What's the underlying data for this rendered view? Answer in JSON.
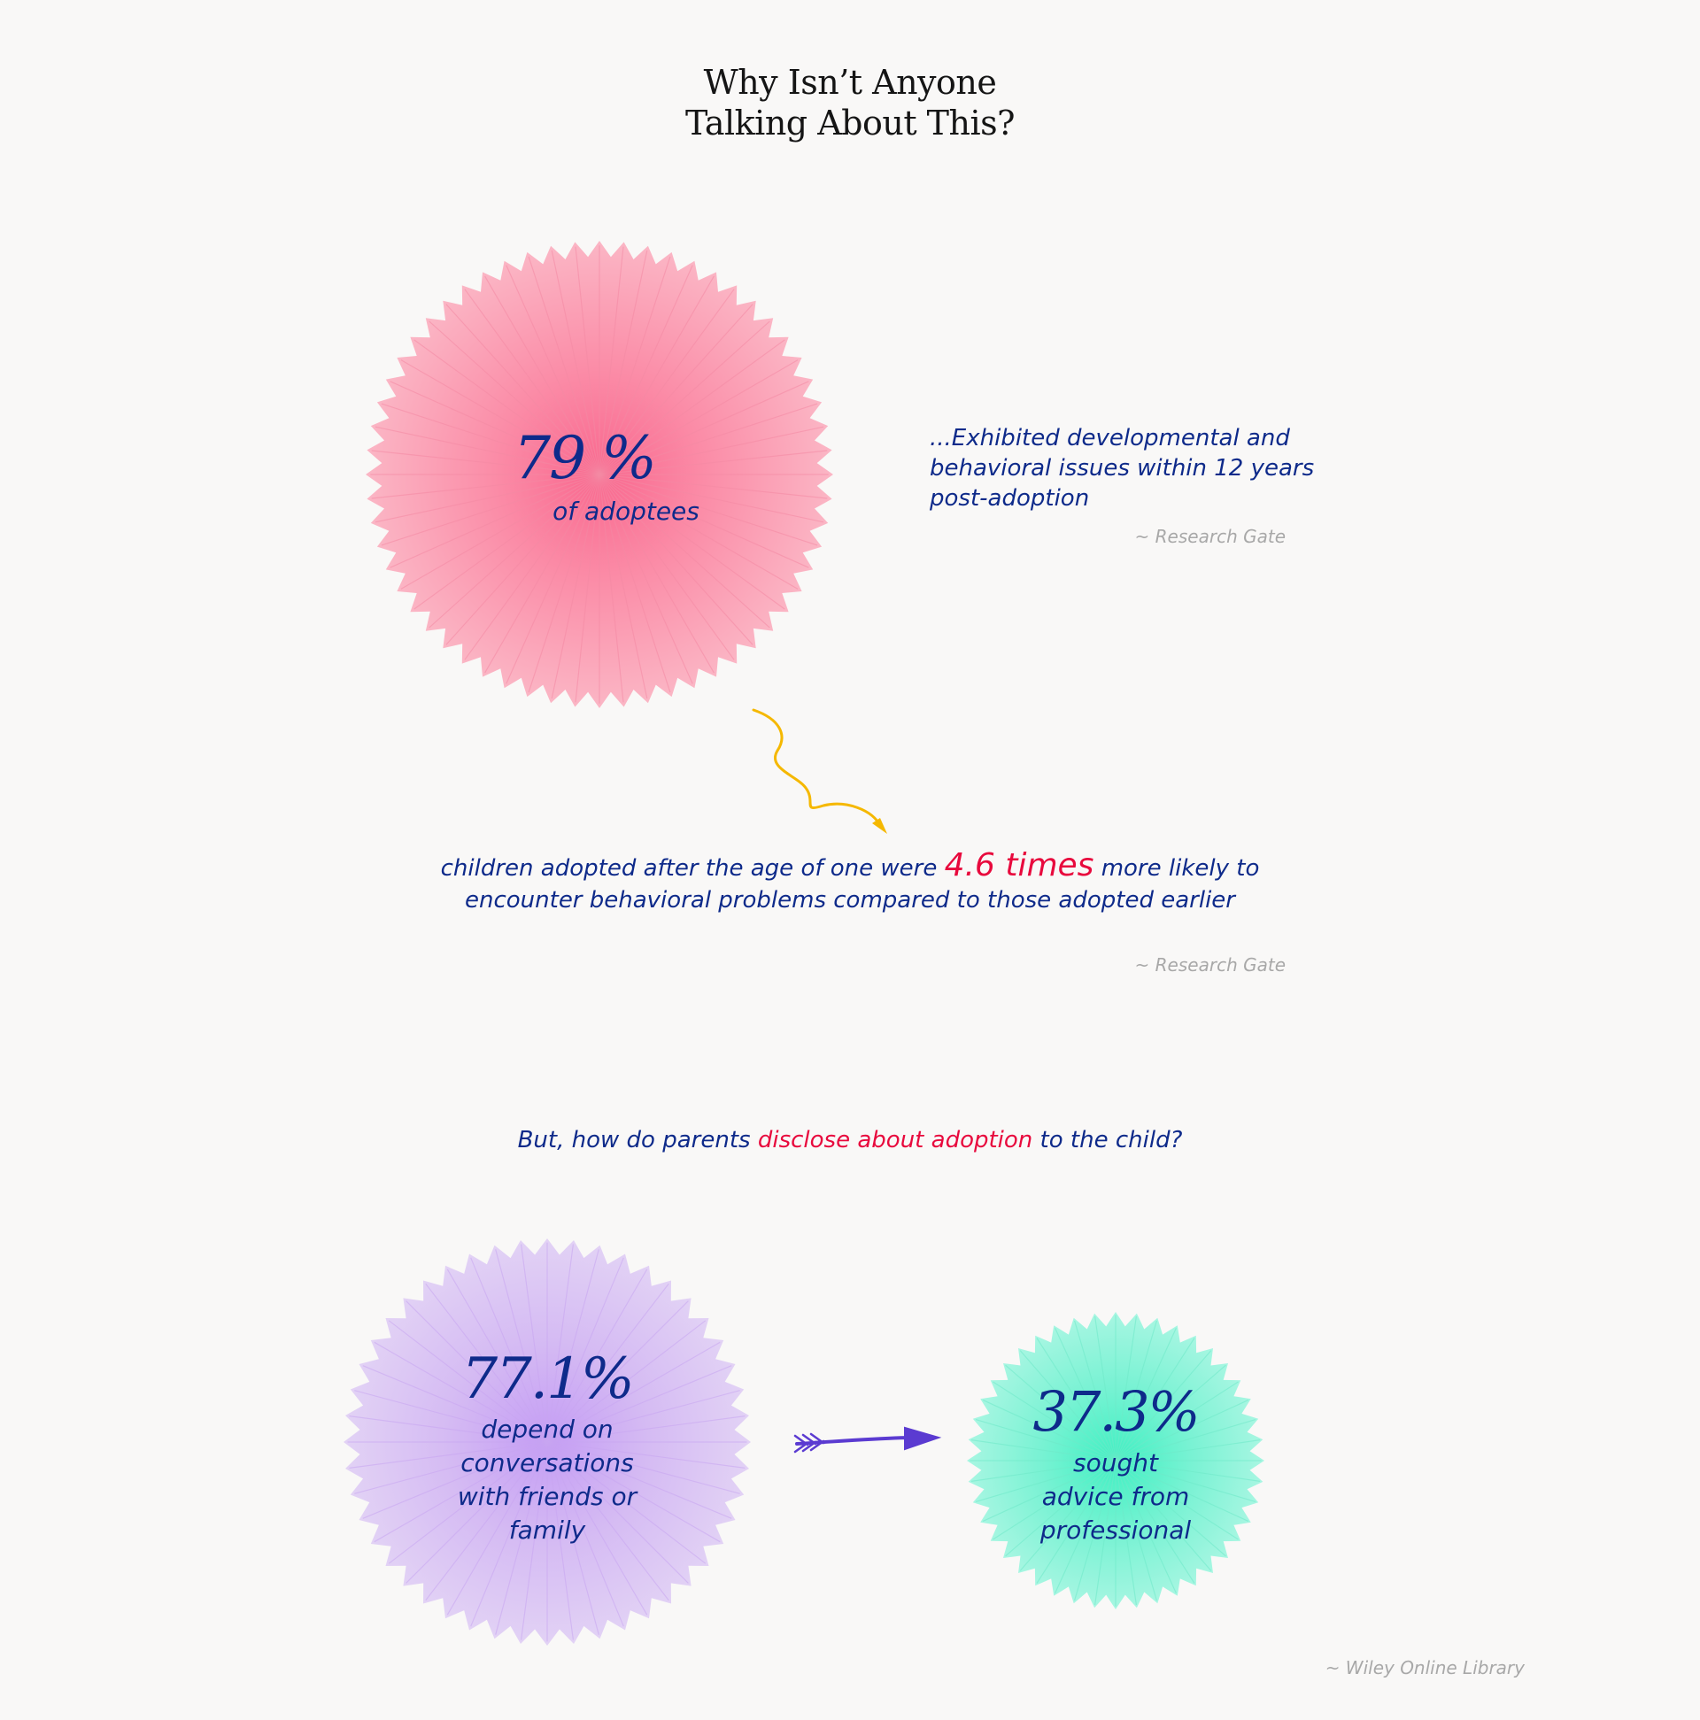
{
  "title": {
    "line1": "Why Isn’t Anyone",
    "line2": "Talking About This?"
  },
  "stat1": {
    "value": "79 %",
    "label": "of adoptees",
    "color": "#f8a0b4",
    "description_lines": [
      "...Exhibited developmental and",
      "behavioral issues within 12 years",
      "post-adoption"
    ],
    "source": "~ Research Gate"
  },
  "stat2": {
    "text_before": "children adopted after the age of one were ",
    "highlight": "4.6 times",
    "text_after": " more likely to",
    "line2": "encounter behavioral problems compared to those adopted earlier",
    "source": "~ Research Gate"
  },
  "question": {
    "before": "But, how do parents ",
    "highlight": "disclose about adoption",
    "after": " to the child?"
  },
  "stat3": {
    "value": "77.1%",
    "label_lines": [
      "depend on",
      "conversations",
      "with friends or",
      "family"
    ],
    "color": "#d9c3f3"
  },
  "stat4": {
    "value": "37.3%",
    "label_lines": [
      "sought",
      "advice from",
      "professional"
    ],
    "color": "#8ef3d6"
  },
  "footer_source": "~ Wiley Online Library",
  "colors": {
    "navy": "#0e2a8a",
    "accent": "#e8093d",
    "squiggle": "#f5b800",
    "arrow": "#5b3bd1"
  }
}
